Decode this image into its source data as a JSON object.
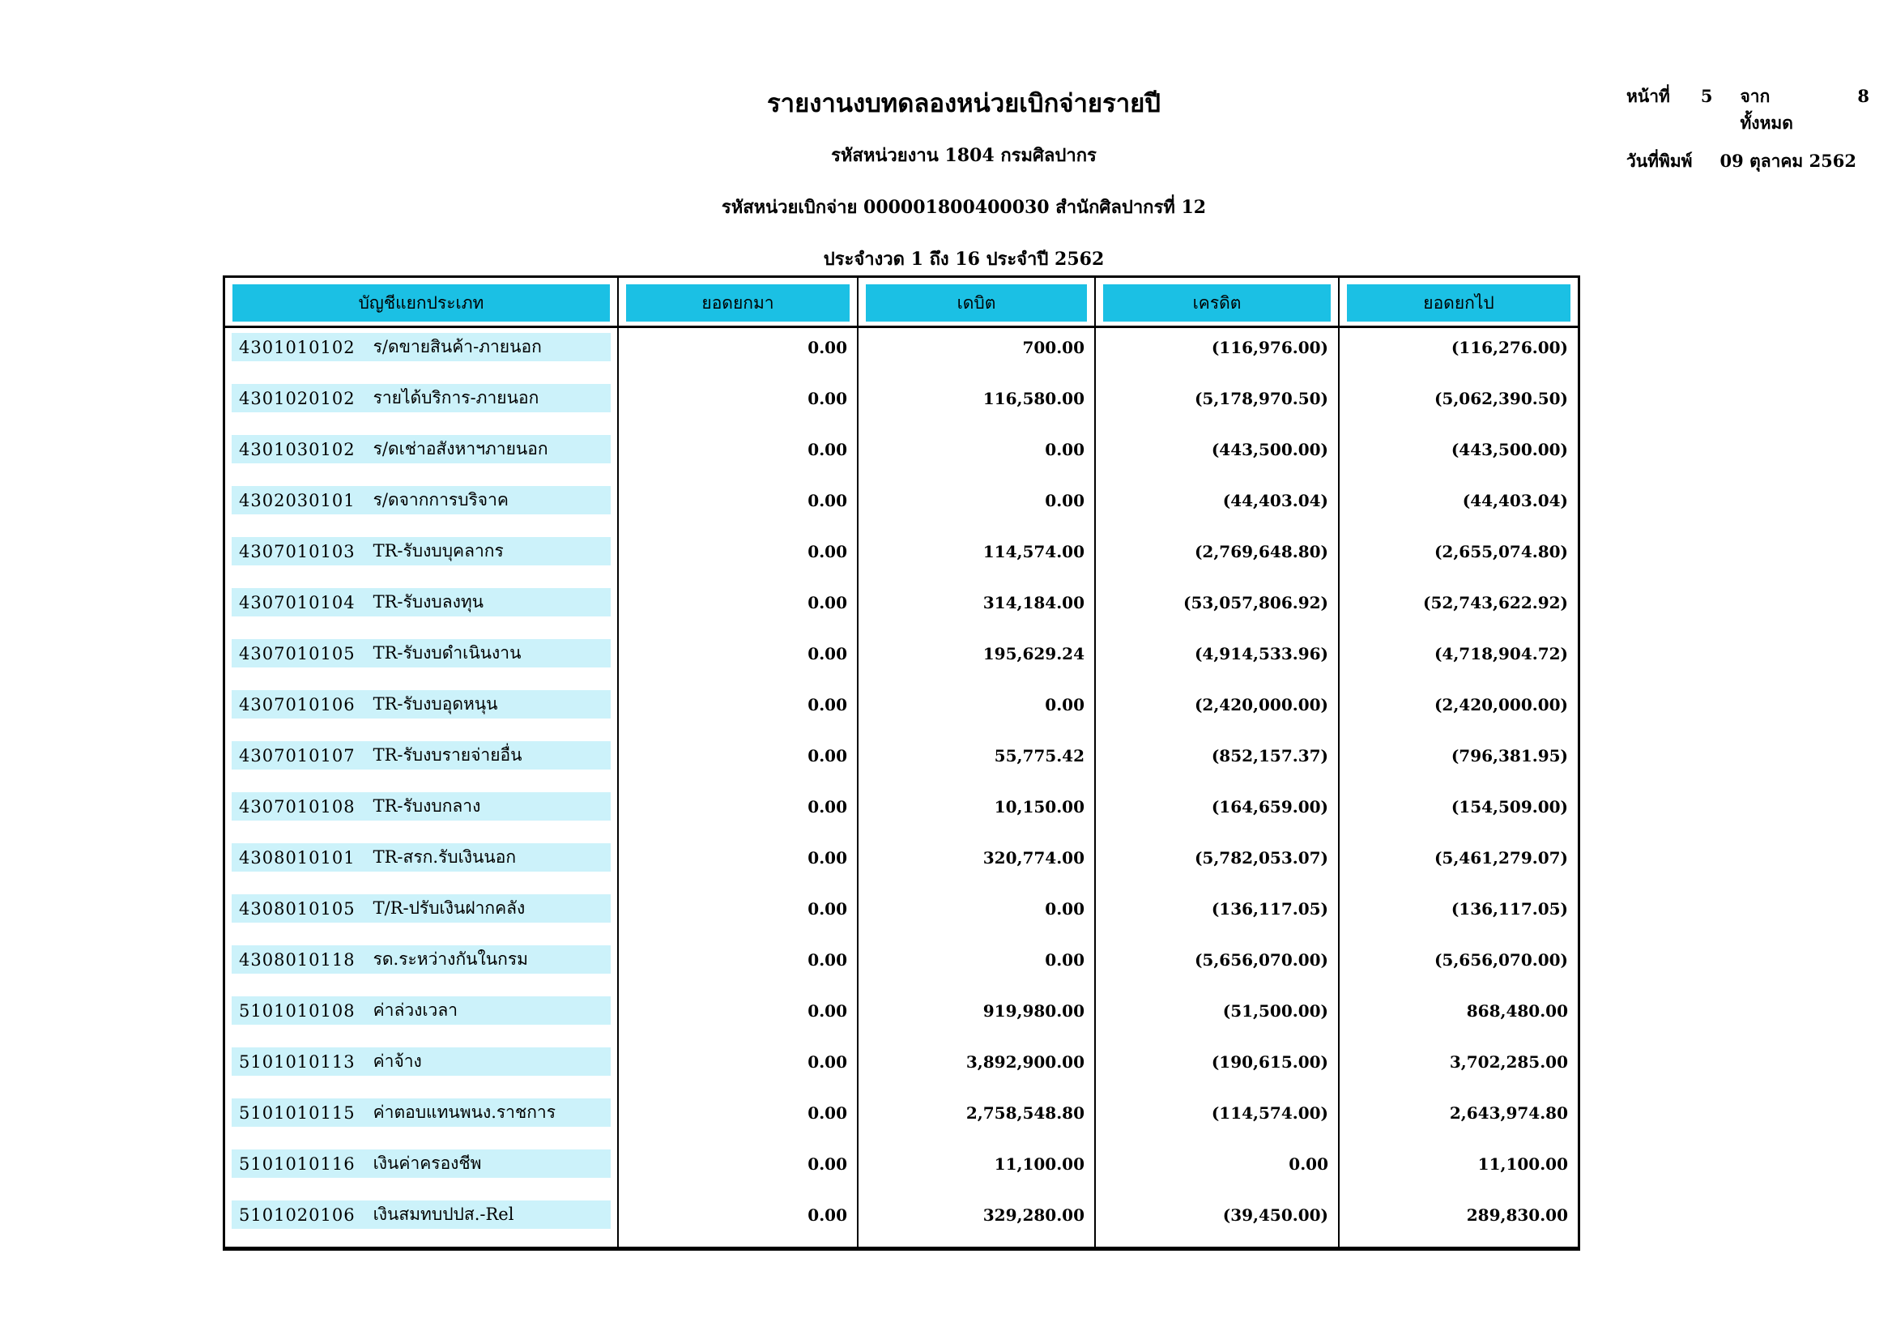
{
  "page": {
    "title": "รายงานงบทดลองหน่วยเบิกจ่ายรายปี",
    "agency_line": "รหัสหน่วยงาน 1804 กรมศิลปากร",
    "unit_line": "รหัสหน่วยเบิกจ่าย 000001800400030 สำนักศิลปากรที่ 12",
    "period_line": "ประจำงวด 1 ถึง 16 ประจำปี 2562",
    "page_label": "หน้าที่",
    "page_number": "5",
    "total_label": "จากทั้งหมด",
    "total_pages": "8",
    "print_date_label": "วันที่พิมพ์",
    "print_date": "09 ตุลาคม 2562"
  },
  "colors": {
    "header_cyan": "#1bc0e4",
    "row_band": "#ccf2fa"
  },
  "table": {
    "headers": [
      "บัญชีแยกประเภท",
      "ยอดยกมา",
      "เดบิต",
      "เครดิต",
      "ยอดยกไป"
    ],
    "rows": [
      {
        "code": "4301010102",
        "name": "ร/ดขายสินค้า-ภายนอก",
        "carry_in": "0.00",
        "debit": "700.00",
        "credit": "(116,976.00)",
        "carry_out": "(116,276.00)"
      },
      {
        "code": "4301020102",
        "name": "รายได้บริการ-ภายนอก",
        "carry_in": "0.00",
        "debit": "116,580.00",
        "credit": "(5,178,970.50)",
        "carry_out": "(5,062,390.50)"
      },
      {
        "code": "4301030102",
        "name": "ร/ดเช่าอสังหาฯภายนอก",
        "carry_in": "0.00",
        "debit": "0.00",
        "credit": "(443,500.00)",
        "carry_out": "(443,500.00)"
      },
      {
        "code": "4302030101",
        "name": "ร/ดจากการบริจาค",
        "carry_in": "0.00",
        "debit": "0.00",
        "credit": "(44,403.04)",
        "carry_out": "(44,403.04)"
      },
      {
        "code": "4307010103",
        "name": "TR-รับงบบุคลากร",
        "carry_in": "0.00",
        "debit": "114,574.00",
        "credit": "(2,769,648.80)",
        "carry_out": "(2,655,074.80)"
      },
      {
        "code": "4307010104",
        "name": "TR-รับงบลงทุน",
        "carry_in": "0.00",
        "debit": "314,184.00",
        "credit": "(53,057,806.92)",
        "carry_out": "(52,743,622.92)"
      },
      {
        "code": "4307010105",
        "name": "TR-รับงบดำเนินงาน",
        "carry_in": "0.00",
        "debit": "195,629.24",
        "credit": "(4,914,533.96)",
        "carry_out": "(4,718,904.72)"
      },
      {
        "code": "4307010106",
        "name": "TR-รับงบอุดหนุน",
        "carry_in": "0.00",
        "debit": "0.00",
        "credit": "(2,420,000.00)",
        "carry_out": "(2,420,000.00)"
      },
      {
        "code": "4307010107",
        "name": "TR-รับงบรายจ่ายอื่น",
        "carry_in": "0.00",
        "debit": "55,775.42",
        "credit": "(852,157.37)",
        "carry_out": "(796,381.95)"
      },
      {
        "code": "4307010108",
        "name": "TR-รับงบกลาง",
        "carry_in": "0.00",
        "debit": "10,150.00",
        "credit": "(164,659.00)",
        "carry_out": "(154,509.00)"
      },
      {
        "code": "4308010101",
        "name": "TR-สรก.รับเงินนอก",
        "carry_in": "0.00",
        "debit": "320,774.00",
        "credit": "(5,782,053.07)",
        "carry_out": "(5,461,279.07)"
      },
      {
        "code": "4308010105",
        "name": "T/R-ปรับเงินฝากคลัง",
        "carry_in": "0.00",
        "debit": "0.00",
        "credit": "(136,117.05)",
        "carry_out": "(136,117.05)"
      },
      {
        "code": "4308010118",
        "name": "รด.ระหว่างกันในกรม",
        "carry_in": "0.00",
        "debit": "0.00",
        "credit": "(5,656,070.00)",
        "carry_out": "(5,656,070.00)"
      },
      {
        "code": "5101010108",
        "name": "ค่าล่วงเวลา",
        "carry_in": "0.00",
        "debit": "919,980.00",
        "credit": "(51,500.00)",
        "carry_out": "868,480.00"
      },
      {
        "code": "5101010113",
        "name": "ค่าจ้าง",
        "carry_in": "0.00",
        "debit": "3,892,900.00",
        "credit": "(190,615.00)",
        "carry_out": "3,702,285.00"
      },
      {
        "code": "5101010115",
        "name": "ค่าตอบแทนพนง.ราชการ",
        "carry_in": "0.00",
        "debit": "2,758,548.80",
        "credit": "(114,574.00)",
        "carry_out": "2,643,974.80"
      },
      {
        "code": "5101010116",
        "name": "เงินค่าครองชีพ",
        "carry_in": "0.00",
        "debit": "11,100.00",
        "credit": "0.00",
        "carry_out": "11,100.00"
      },
      {
        "code": "5101020106",
        "name": "เงินสมทบปปส.-Rel",
        "carry_in": "0.00",
        "debit": "329,280.00",
        "credit": "(39,450.00)",
        "carry_out": "289,830.00"
      }
    ]
  }
}
